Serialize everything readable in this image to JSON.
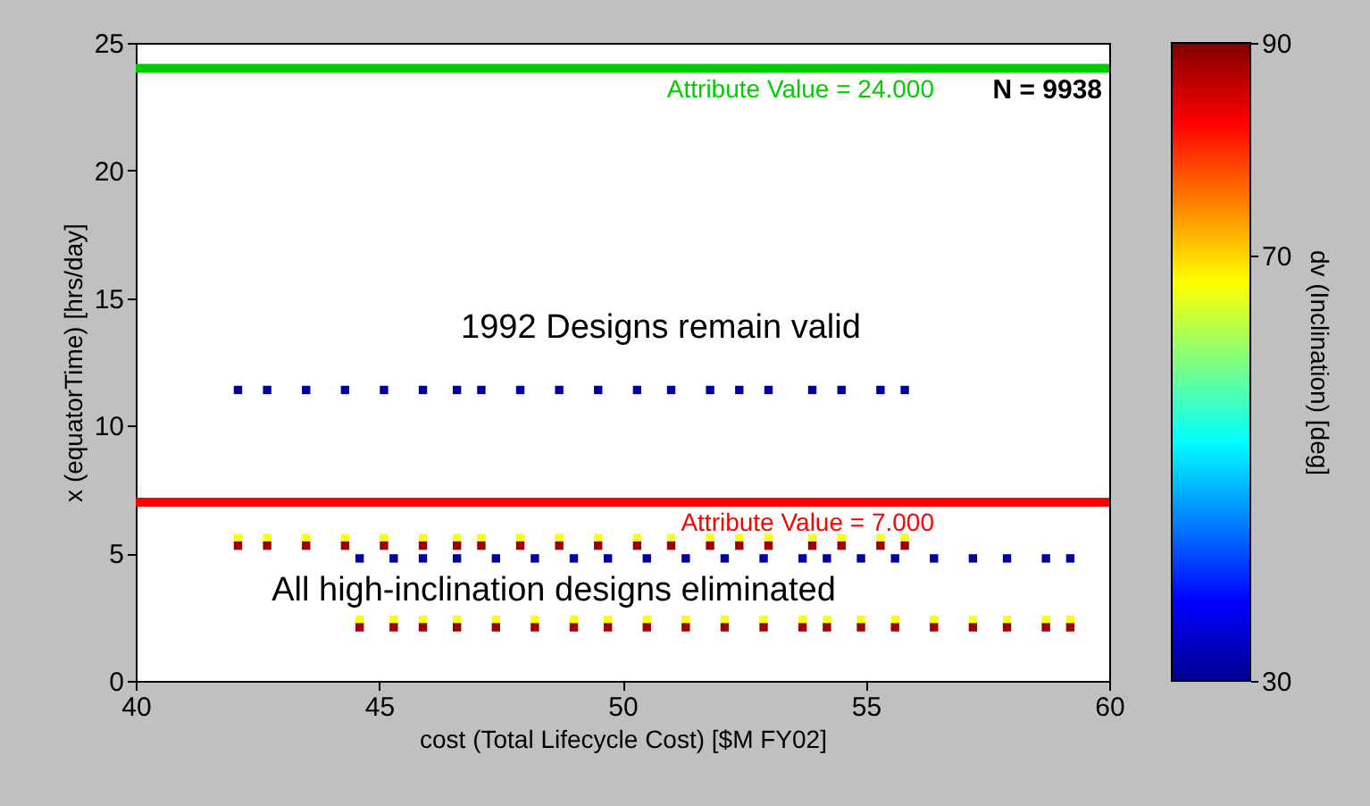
{
  "chart_data": {
    "type": "scatter",
    "xlabel": "cost (Total Lifecycle Cost) [$M FY02]",
    "ylabel": "x (equatorTime) [hrs/day]",
    "clabel": "dv (Inclination) [deg]",
    "xlim": [
      40,
      60
    ],
    "xticks": [
      40,
      45,
      50,
      55,
      60
    ],
    "ylim": [
      0,
      25
    ],
    "yticks": [
      0,
      5,
      10,
      15,
      20,
      25
    ],
    "clim": [
      30,
      90
    ],
    "cticks": [
      30,
      70,
      90
    ],
    "grid": false,
    "marker": "square",
    "series": [
      {
        "x": [
          42.1,
          42.7,
          43.5,
          44.3,
          45.1,
          45.9,
          46.6,
          47.1,
          47.9,
          48.7,
          49.5,
          50.3,
          51.0,
          51.8,
          52.4,
          53.0,
          53.9,
          54.5,
          55.3,
          55.8,
          42.1,
          42.7,
          43.5,
          44.3,
          45.1,
          45.9,
          46.6,
          47.1,
          47.9,
          48.7,
          49.5,
          50.3,
          51.0,
          51.8,
          52.4,
          53.0,
          53.9,
          54.5,
          55.3,
          55.8,
          42.1,
          42.7,
          43.5,
          44.3,
          45.1,
          45.9,
          46.6,
          47.1,
          47.9,
          48.7,
          49.5,
          50.3,
          51.0,
          51.8,
          52.4,
          53.0,
          53.9,
          54.5,
          55.3,
          55.8,
          44.6,
          45.3,
          45.9,
          46.6,
          47.4,
          48.2,
          49.0,
          49.7,
          50.5,
          51.3,
          52.1,
          52.9,
          53.7,
          54.2,
          54.9,
          55.6,
          56.4,
          57.2,
          57.9,
          58.7,
          59.2,
          44.6,
          45.3,
          45.9,
          46.6,
          47.4,
          48.2,
          49.0,
          49.7,
          50.5,
          51.3,
          52.1,
          52.9,
          53.7,
          54.2,
          54.9,
          55.6,
          56.4,
          57.2,
          57.9,
          58.7,
          59.2,
          44.6,
          45.3,
          45.9,
          46.6,
          47.4,
          48.2,
          49.0,
          49.7,
          50.5,
          51.3,
          52.1,
          52.9,
          53.7,
          54.2,
          54.9,
          55.6,
          56.4,
          57.2,
          57.9,
          58.7,
          59.2
        ],
        "values": [
          11.4,
          11.4,
          11.4,
          11.4,
          11.4,
          11.4,
          11.4,
          11.4,
          11.4,
          11.4,
          11.4,
          11.4,
          11.4,
          11.4,
          11.4,
          11.4,
          11.4,
          11.4,
          11.4,
          11.4,
          5.6,
          5.6,
          5.6,
          5.6,
          5.6,
          5.6,
          5.6,
          5.6,
          5.6,
          5.6,
          5.6,
          5.6,
          5.6,
          5.6,
          5.6,
          5.6,
          5.6,
          5.6,
          5.6,
          5.6,
          5.3,
          5.3,
          5.3,
          5.3,
          5.3,
          5.3,
          5.3,
          5.3,
          5.3,
          5.3,
          5.3,
          5.3,
          5.3,
          5.3,
          5.3,
          5.3,
          5.3,
          5.3,
          5.3,
          5.3,
          4.8,
          4.8,
          4.8,
          4.8,
          4.8,
          4.8,
          4.8,
          4.8,
          4.8,
          4.8,
          4.8,
          4.8,
          4.8,
          4.8,
          4.8,
          4.8,
          4.8,
          4.8,
          4.8,
          4.8,
          4.8,
          2.4,
          2.4,
          2.4,
          2.4,
          2.4,
          2.4,
          2.4,
          2.4,
          2.4,
          2.4,
          2.4,
          2.4,
          2.4,
          2.4,
          2.4,
          2.4,
          2.4,
          2.4,
          2.4,
          2.4,
          2.4,
          2.1,
          2.1,
          2.1,
          2.1,
          2.1,
          2.1,
          2.1,
          2.1,
          2.1,
          2.1,
          2.1,
          2.1,
          2.1,
          2.1,
          2.1,
          2.1,
          2.1,
          2.1,
          2.1,
          2.1,
          2.1
        ],
        "cvalues": [
          31,
          31,
          31,
          31,
          31,
          31,
          31,
          31,
          31,
          31,
          31,
          31,
          31,
          31,
          31,
          31,
          31,
          31,
          31,
          31,
          67,
          67,
          67,
          67,
          67,
          67,
          67,
          67,
          67,
          67,
          67,
          67,
          67,
          67,
          67,
          67,
          67,
          67,
          67,
          67,
          88,
          88,
          88,
          88,
          88,
          88,
          88,
          88,
          88,
          88,
          88,
          88,
          88,
          88,
          88,
          88,
          88,
          88,
          88,
          88,
          31,
          31,
          31,
          31,
          31,
          31,
          31,
          31,
          31,
          31,
          31,
          31,
          31,
          31,
          31,
          31,
          31,
          31,
          31,
          31,
          31,
          67,
          67,
          67,
          67,
          67,
          67,
          67,
          67,
          67,
          67,
          67,
          67,
          67,
          67,
          67,
          67,
          67,
          67,
          67,
          67,
          67,
          88,
          88,
          88,
          88,
          88,
          88,
          88,
          88,
          88,
          88,
          88,
          88,
          88,
          88,
          88,
          88,
          88,
          88,
          88,
          88,
          88
        ]
      }
    ],
    "ref_lines": [
      {
        "axis": "y",
        "value": 24,
        "label": "Attribute Value = 24.000",
        "color": "#00cc00",
        "line_style": "solid"
      },
      {
        "axis": "y",
        "value": 7,
        "label": "Attribute Value = 7.000",
        "color": "#ff0000",
        "line_style": "solid"
      }
    ],
    "annotations": [
      "N = 9938",
      "1992 Designs remain valid",
      "All high-inclination designs eliminated"
    ]
  }
}
